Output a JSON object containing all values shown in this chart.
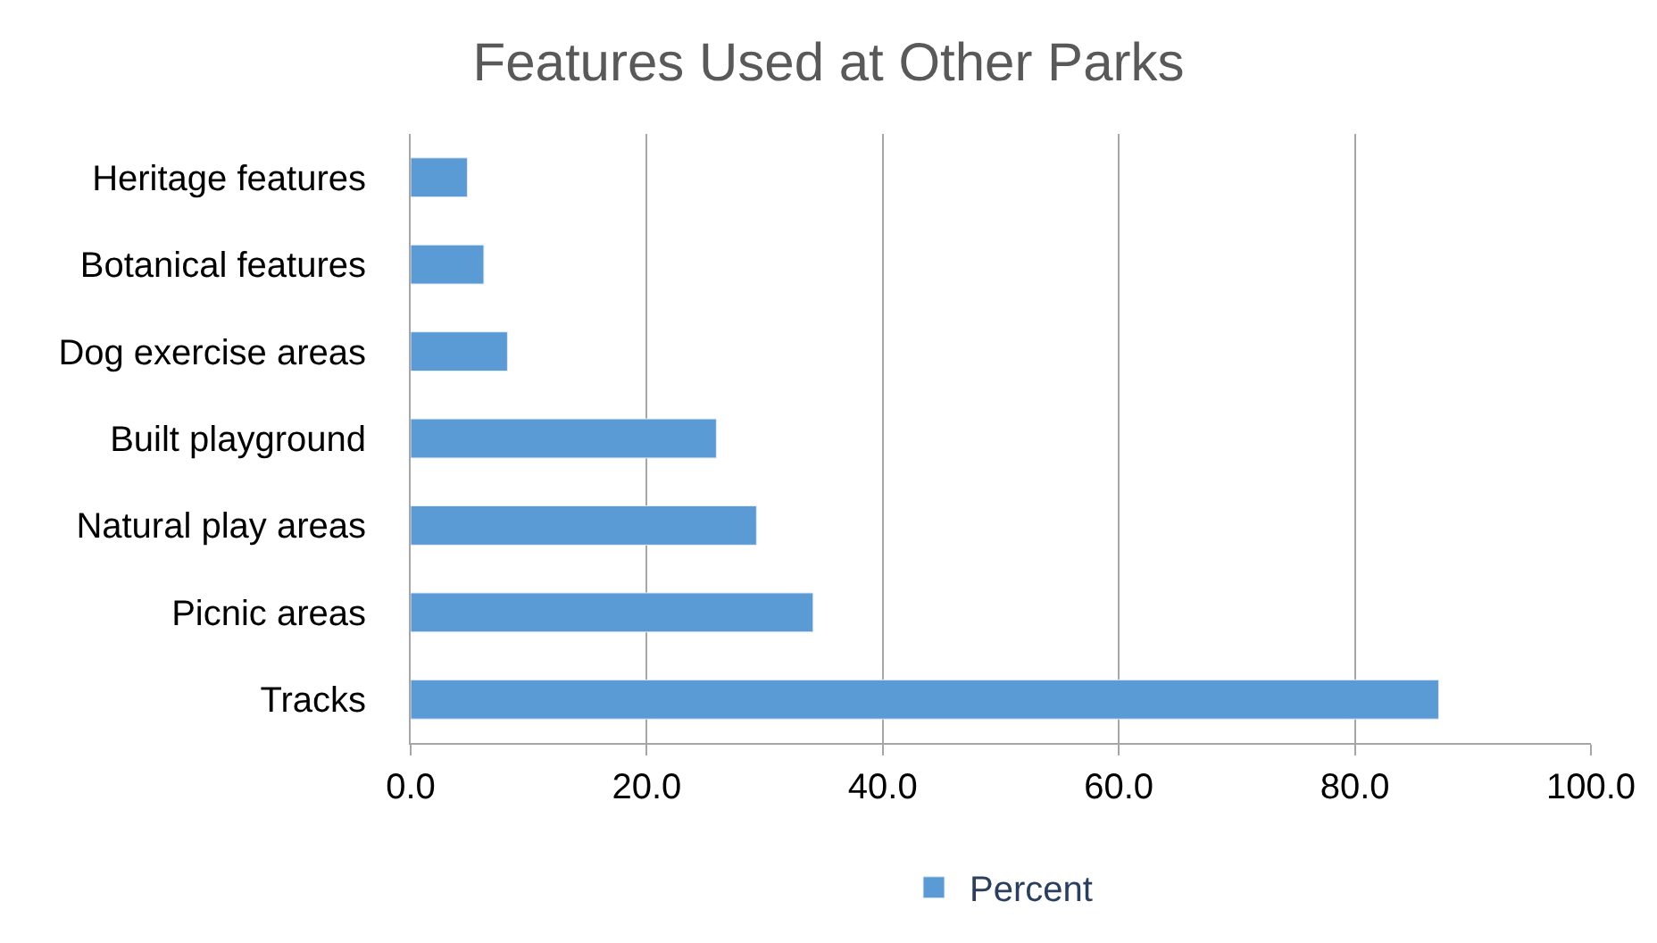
{
  "chart_data": {
    "type": "bar",
    "orientation": "horizontal",
    "title": "Features Used at Other Parks",
    "categories": [
      "Heritage features",
      "Botanical features",
      "Dog exercise areas",
      "Built playground",
      "Natural play areas",
      "Picnic areas",
      "Tracks"
    ],
    "series": [
      {
        "name": "Percent",
        "color": "#5b9bd5",
        "values": [
          4.8,
          6.2,
          8.2,
          25.9,
          29.3,
          34.1,
          87.1
        ]
      }
    ],
    "xlim": [
      0,
      100
    ],
    "xticks": [
      {
        "value": 0,
        "label": "0.0"
      },
      {
        "value": 20,
        "label": "20.0"
      },
      {
        "value": 40,
        "label": "40.0"
      },
      {
        "value": 60,
        "label": "60.0"
      },
      {
        "value": 80,
        "label": "80.0"
      },
      {
        "value": 100,
        "label": "100.0"
      }
    ],
    "grid": "x",
    "legend": "bottom"
  }
}
